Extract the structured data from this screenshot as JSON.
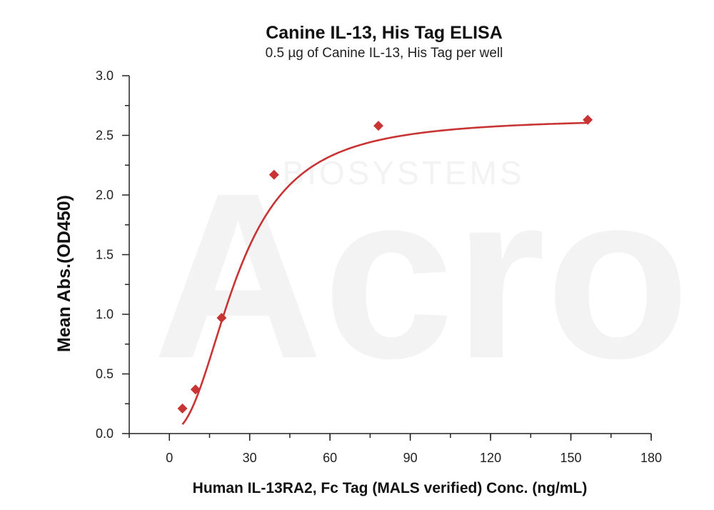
{
  "chart_data": {
    "type": "scatter",
    "title": "Canine IL-13, His Tag ELISA",
    "subtitle": "0.5 µg of Canine IL-13, His Tag per well",
    "xlabel": "Human IL-13RA2, Fc Tag (MALS verified) Conc. (ng/mL)",
    "ylabel": "Mean Abs.(OD450)",
    "xlim": [
      -15,
      180
    ],
    "ylim": [
      0,
      3.0
    ],
    "x_ticks": [
      0,
      30,
      60,
      90,
      120,
      150,
      180
    ],
    "y_ticks": [
      0.0,
      0.5,
      1.0,
      1.5,
      2.0,
      2.5,
      3.0
    ],
    "x_tick_labels": [
      "0",
      "30",
      "60",
      "90",
      "120",
      "150",
      "180"
    ],
    "y_tick_labels": [
      "0.0",
      "0.5",
      "1.0",
      "1.5",
      "2.0",
      "2.5",
      "3.0"
    ],
    "grid": false,
    "legend": "none",
    "series": [
      {
        "x": [
          4.88,
          9.77,
          19.5,
          39.1,
          78.1,
          156.3
        ],
        "y": [
          0.21,
          0.37,
          0.97,
          2.17,
          2.58,
          2.63
        ],
        "color": "#c83434",
        "marker": "diamond",
        "fit": "four-parameter-logistic"
      }
    ],
    "watermark": {
      "brand": "Acro",
      "tagline": "BIOSYSTEMS"
    }
  }
}
